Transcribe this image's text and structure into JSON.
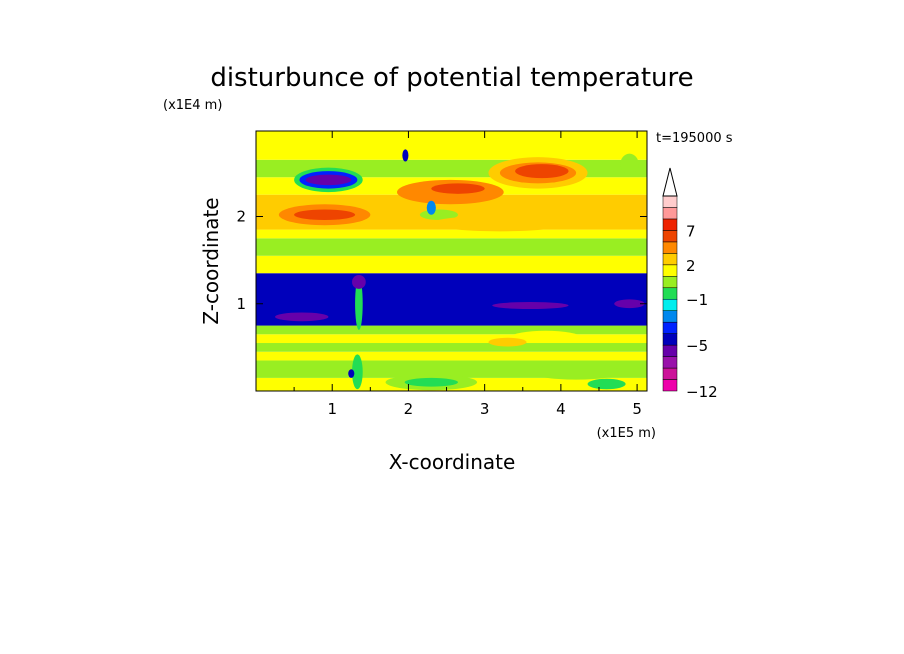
{
  "chart_data": {
    "type": "heatmap",
    "title": "disturbunce of potential temperature",
    "xlabel": "X-coordinate",
    "ylabel": "Z-coordinate",
    "x_unit": "(x1E5 m)",
    "y_unit": "(x1E4 m)",
    "time_label": "t=195000 s",
    "xlim": [
      0,
      5.13
    ],
    "ylim": [
      0,
      2.98
    ],
    "x_ticks": [
      {
        "value": 1,
        "label": "1"
      },
      {
        "value": 2,
        "label": "2"
      },
      {
        "value": 3,
        "label": "3"
      },
      {
        "value": 4,
        "label": "4"
      },
      {
        "value": 5,
        "label": "5"
      }
    ],
    "y_ticks": [
      {
        "value": 1,
        "label": "1"
      },
      {
        "value": 2,
        "label": "2"
      }
    ],
    "colorbar": {
      "labels": [
        {
          "value": 7,
          "label": "7"
        },
        {
          "value": 2,
          "label": "2"
        },
        {
          "value": -1,
          "label": "−1"
        },
        {
          "value": -5,
          "label": "−5"
        },
        {
          "value": -12,
          "label": "−12"
        }
      ],
      "colors": [
        "#ee00aa",
        "#cc1199",
        "#9911aa",
        "#6600aa",
        "#0000bb",
        "#0022ff",
        "#0088ee",
        "#00eeee",
        "#22dd55",
        "#99ee22",
        "#ffff00",
        "#ffcc00",
        "#ff8800",
        "#ee4400",
        "#ee2200",
        "#ff9999",
        "#ffcccc"
      ],
      "extend_top": true
    },
    "bands": [
      {
        "z_range": [
          0.0,
          0.15
        ],
        "x_range": [
          0,
          5.13
        ],
        "level": 1
      },
      {
        "z_range": [
          0.15,
          0.35
        ],
        "x_range": [
          0,
          5.13
        ],
        "level": 0
      },
      {
        "z_range": [
          0.35,
          0.45
        ],
        "x_range": [
          0,
          5.13
        ],
        "level": 1
      },
      {
        "z_range": [
          0.45,
          0.55
        ],
        "x_range": [
          0,
          5.13
        ],
        "level": 0
      },
      {
        "z_range": [
          0.55,
          0.65
        ],
        "x_range": [
          0,
          5.13
        ],
        "level": 1
      },
      {
        "z_range": [
          0.65,
          0.75
        ],
        "x_range": [
          0,
          5.13
        ],
        "level": 0
      },
      {
        "z_range": [
          0.75,
          1.35
        ],
        "x_range": [
          0,
          5.13
        ],
        "level": -5
      },
      {
        "z_range": [
          1.35,
          1.55
        ],
        "x_range": [
          0,
          5.13
        ],
        "level": 1
      },
      {
        "z_range": [
          1.55,
          1.75
        ],
        "x_range": [
          0,
          5.13
        ],
        "level": 0
      },
      {
        "z_range": [
          1.75,
          1.85
        ],
        "x_range": [
          0,
          5.13
        ],
        "level": 1
      },
      {
        "z_range": [
          1.85,
          2.25
        ],
        "x_range": [
          0,
          5.13
        ],
        "level": 2
      },
      {
        "z_range": [
          2.25,
          2.45
        ],
        "x_range": [
          0,
          5.13
        ],
        "level": 1
      },
      {
        "z_range": [
          2.45,
          2.65
        ],
        "x_range": [
          0,
          5.13
        ],
        "level": 0
      },
      {
        "z_range": [
          2.65,
          2.98
        ],
        "x_range": [
          0,
          5.13
        ],
        "level": 1
      }
    ],
    "features": [
      {
        "cx": 0.95,
        "cz": 2.42,
        "rx": 0.45,
        "rz": 0.14,
        "level": -1
      },
      {
        "cx": 0.95,
        "cz": 2.42,
        "rx": 0.38,
        "rz": 0.1,
        "level": -4
      },
      {
        "cx": 0.95,
        "cz": 2.42,
        "rx": 0.3,
        "rz": 0.06,
        "level": -6
      },
      {
        "cx": 0.9,
        "cz": 2.02,
        "rx": 0.6,
        "rz": 0.12,
        "level": 3
      },
      {
        "cx": 0.9,
        "cz": 2.02,
        "rx": 0.4,
        "rz": 0.06,
        "level": 4
      },
      {
        "cx": 2.55,
        "cz": 2.28,
        "rx": 0.7,
        "rz": 0.14,
        "level": 3
      },
      {
        "cx": 2.65,
        "cz": 2.32,
        "rx": 0.35,
        "rz": 0.06,
        "level": 4
      },
      {
        "cx": 2.4,
        "cz": 2.02,
        "rx": 0.25,
        "rz": 0.06,
        "level": 0
      },
      {
        "cx": 3.7,
        "cz": 2.5,
        "rx": 0.65,
        "rz": 0.18,
        "level": 2
      },
      {
        "cx": 3.7,
        "cz": 2.5,
        "rx": 0.5,
        "rz": 0.12,
        "level": 3
      },
      {
        "cx": 3.75,
        "cz": 2.52,
        "rx": 0.35,
        "rz": 0.08,
        "level": 4
      },
      {
        "cx": 3.2,
        "cz": 1.92,
        "rx": 0.9,
        "rz": 0.09,
        "level": 2
      },
      {
        "cx": 3.8,
        "cz": 0.62,
        "rx": 0.45,
        "rz": 0.07,
        "level": 1
      },
      {
        "cx": 3.3,
        "cz": 0.56,
        "rx": 0.25,
        "rz": 0.05,
        "level": 2
      },
      {
        "cx": 2.3,
        "cz": 0.1,
        "rx": 0.6,
        "rz": 0.09,
        "level": 0
      },
      {
        "cx": 2.3,
        "cz": 0.1,
        "rx": 0.35,
        "rz": 0.05,
        "level": -1
      },
      {
        "cx": 4.2,
        "cz": 0.22,
        "rx": 0.6,
        "rz": 0.09,
        "level": 0
      },
      {
        "cx": 4.6,
        "cz": 0.08,
        "rx": 0.25,
        "rz": 0.06,
        "level": -1
      },
      {
        "cx": 1.35,
        "cz": 1.0,
        "rx": 0.05,
        "rz": 0.3,
        "level": -1
      },
      {
        "cx": 1.35,
        "cz": 1.25,
        "rx": 0.09,
        "rz": 0.08,
        "level": -6
      },
      {
        "cx": 1.33,
        "cz": 0.22,
        "rx": 0.07,
        "rz": 0.2,
        "level": -1
      },
      {
        "cx": 1.25,
        "cz": 0.2,
        "rx": 0.04,
        "rz": 0.05,
        "level": -5
      },
      {
        "cx": 0.6,
        "cz": 0.85,
        "rx": 0.35,
        "rz": 0.05,
        "level": -6
      },
      {
        "cx": 3.6,
        "cz": 0.98,
        "rx": 0.5,
        "rz": 0.04,
        "level": -6
      },
      {
        "cx": 4.9,
        "cz": 1.0,
        "rx": 0.2,
        "rz": 0.05,
        "level": -6
      },
      {
        "cx": 1.96,
        "cz": 2.7,
        "rx": 0.04,
        "rz": 0.07,
        "level": -5
      },
      {
        "cx": 2.3,
        "cz": 2.1,
        "rx": 0.06,
        "rz": 0.08,
        "level": -3
      },
      {
        "cx": 4.9,
        "cz": 2.6,
        "rx": 0.12,
        "rz": 0.12,
        "level": 0
      }
    ]
  }
}
